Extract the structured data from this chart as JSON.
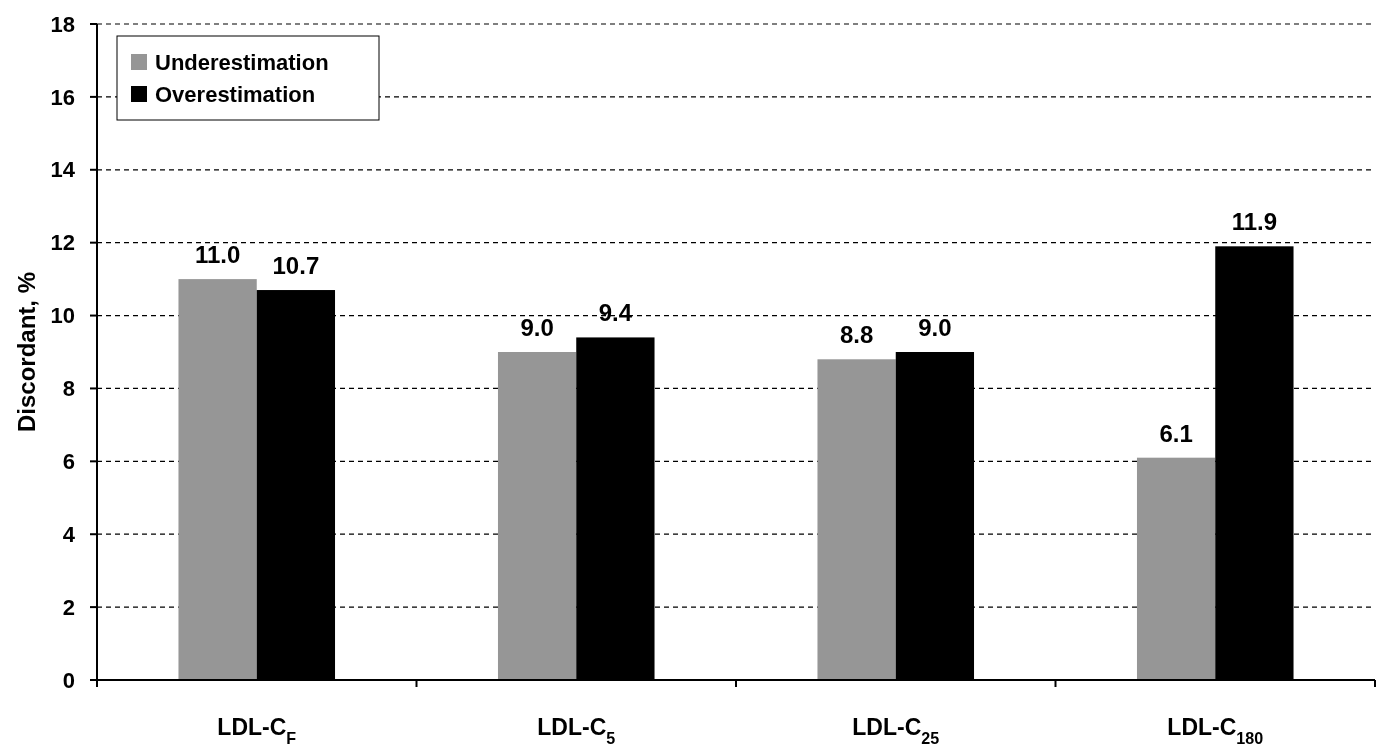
{
  "chart_data": {
    "type": "bar",
    "ylabel": "Discordant, %",
    "categories": [
      "LDL-C$_{F}$",
      "LDL-C$_{5}$",
      "LDL-C$_{25}$",
      "LDL-C$_{180}$"
    ],
    "series": [
      {
        "name": "Underestimation",
        "color": "#969696",
        "values": [
          11.0,
          9.0,
          8.8,
          6.1
        ],
        "value_labels": [
          "11.0",
          "9.0",
          "8.8",
          "6.1"
        ]
      },
      {
        "name": "Overestimation",
        "color": "#000000",
        "values": [
          10.7,
          9.4,
          9.0,
          11.9
        ],
        "value_labels": [
          "10.7",
          "9.4",
          "9.0",
          "11.9"
        ]
      }
    ],
    "ylim": [
      0,
      18
    ],
    "yticks": [
      0,
      2,
      4,
      6,
      8,
      10,
      12,
      14,
      16,
      18
    ],
    "grid": "y",
    "legend": "top left"
  }
}
